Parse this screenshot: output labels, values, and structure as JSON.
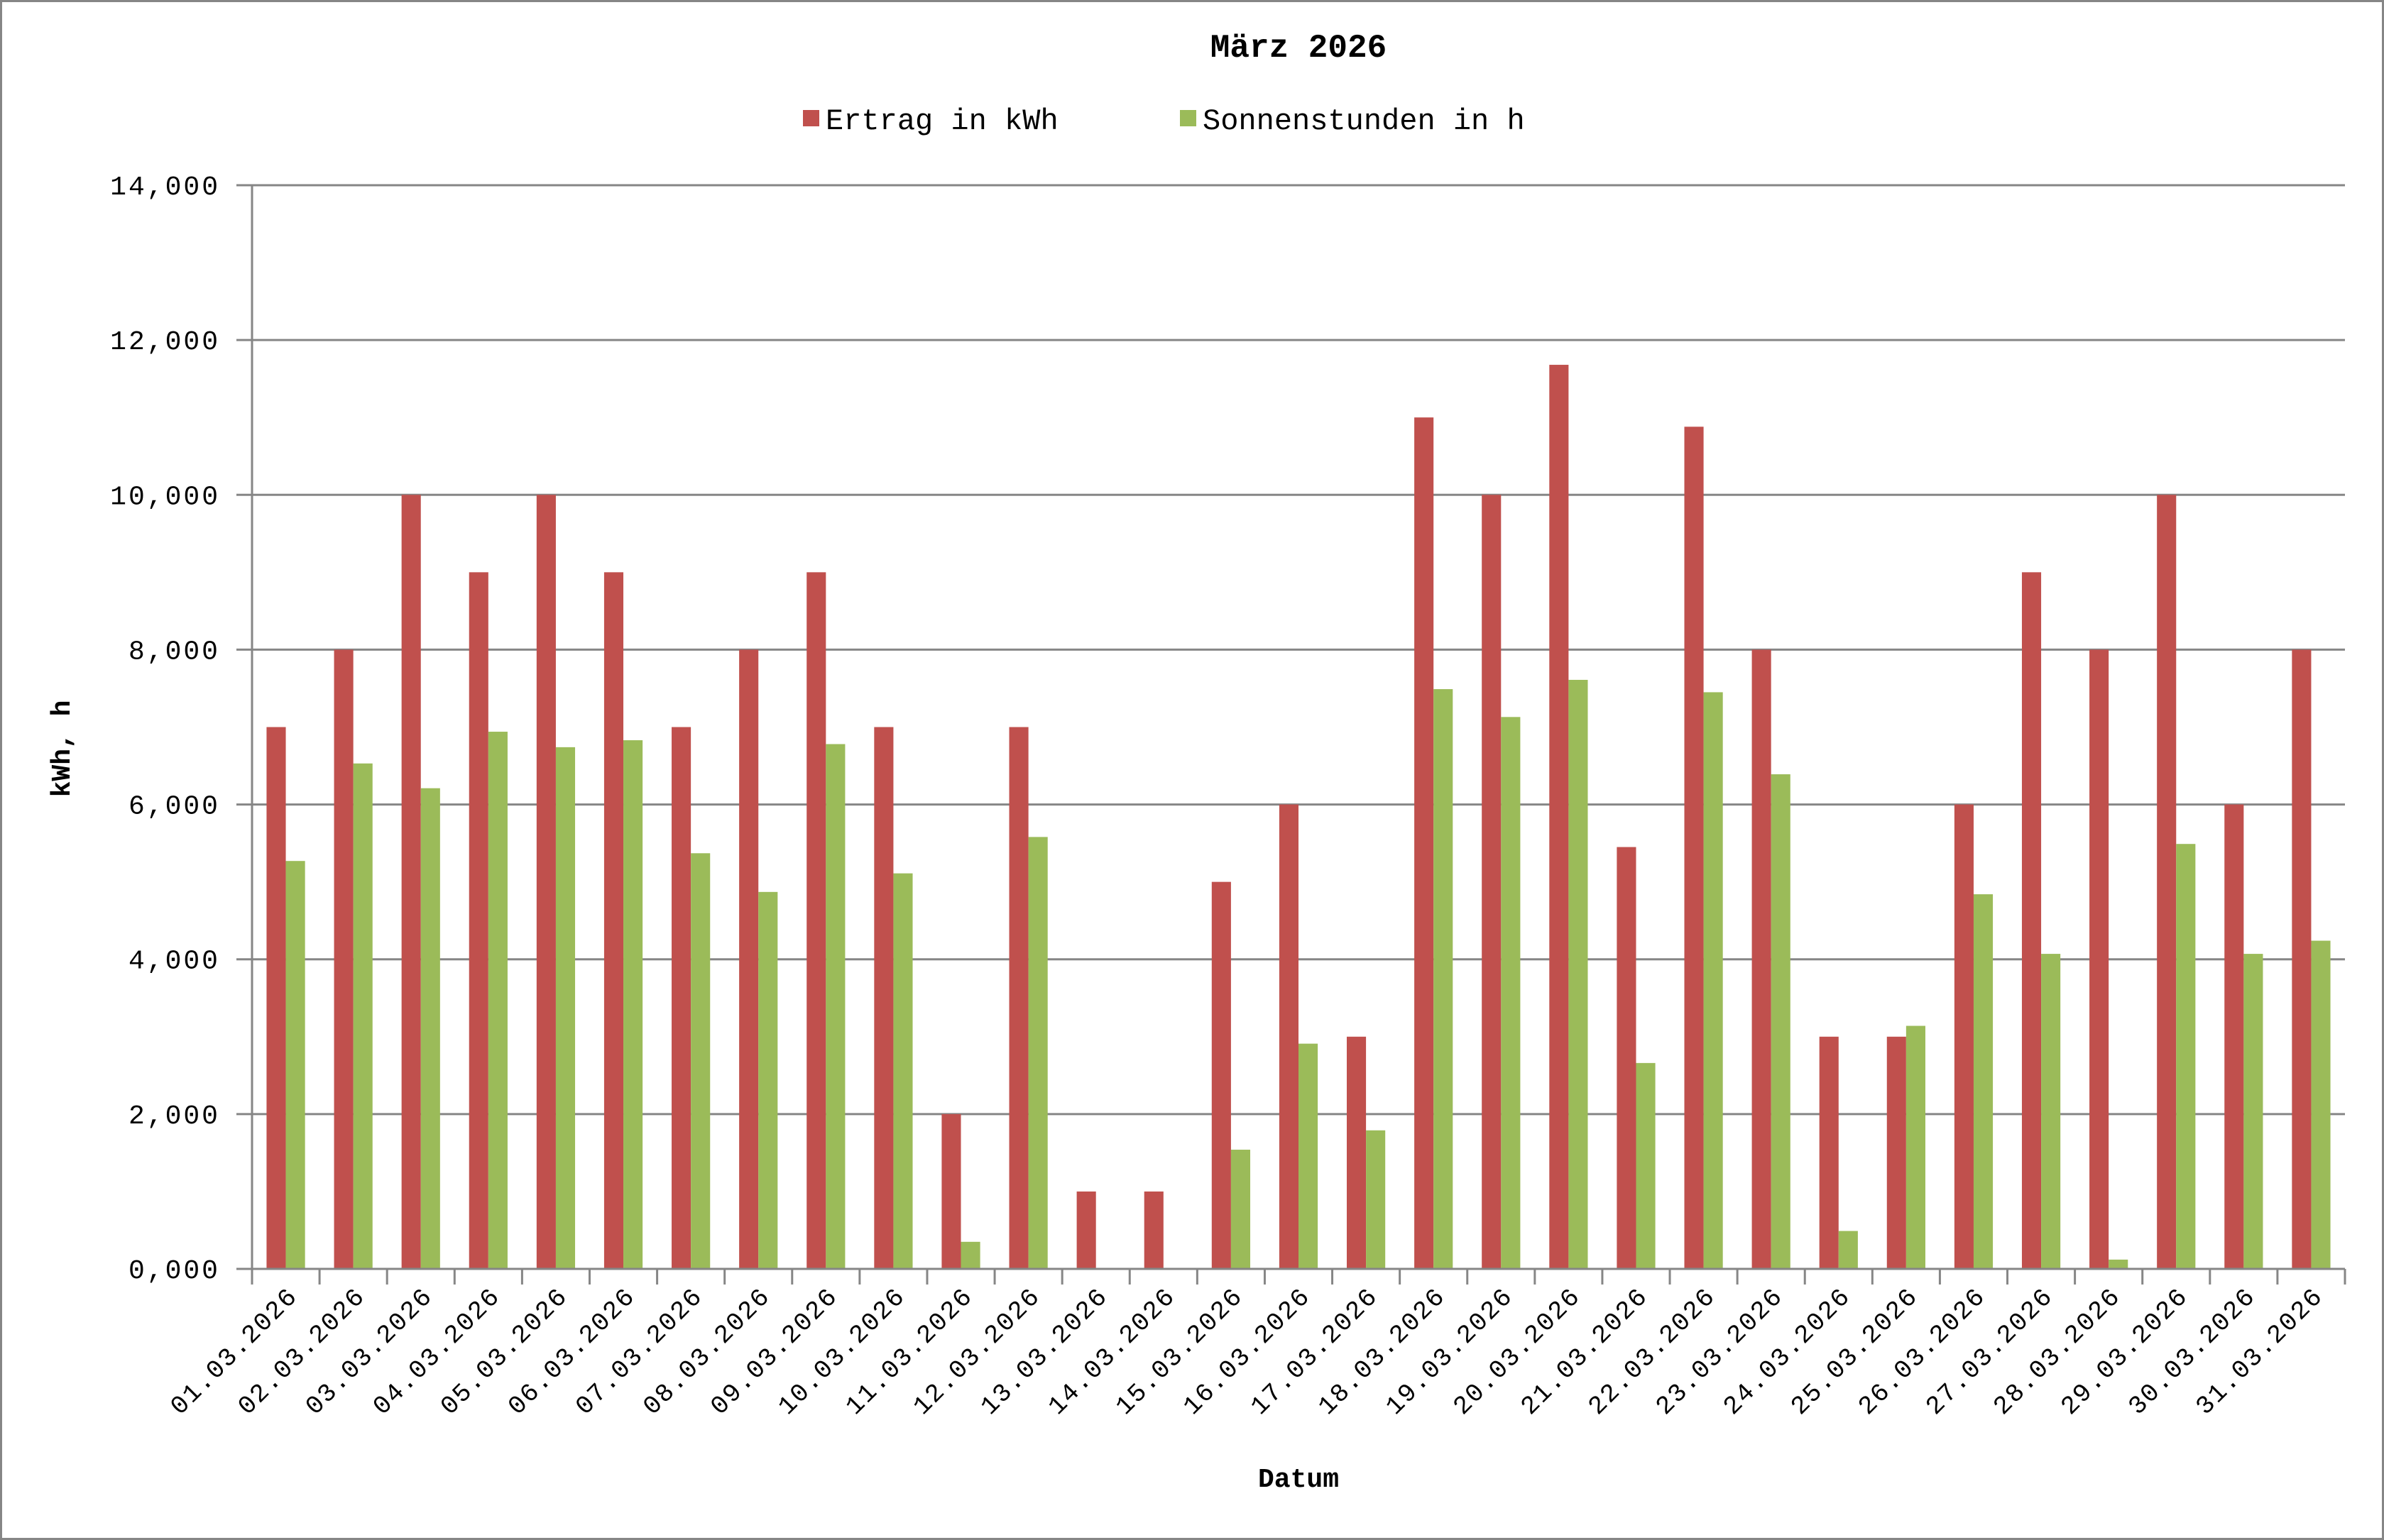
{
  "chart_data": {
    "type": "bar",
    "title": "März 2026",
    "xlabel": "Datum",
    "ylabel": "kWh, h",
    "ylim": [
      0,
      14
    ],
    "yticks": [
      "0,000",
      "2,000",
      "4,000",
      "6,000",
      "8,000",
      "10,000",
      "12,000",
      "14,000"
    ],
    "grid": true,
    "legend_position": "top",
    "categories": [
      "01.03.2026",
      "02.03.2026",
      "03.03.2026",
      "04.03.2026",
      "05.03.2026",
      "06.03.2026",
      "07.03.2026",
      "08.03.2026",
      "09.03.2026",
      "10.03.2026",
      "11.03.2026",
      "12.03.2026",
      "13.03.2026",
      "14.03.2026",
      "15.03.2026",
      "16.03.2026",
      "17.03.2026",
      "18.03.2026",
      "19.03.2026",
      "20.03.2026",
      "21.03.2026",
      "22.03.2026",
      "23.03.2026",
      "24.03.2026",
      "25.03.2026",
      "26.03.2026",
      "27.03.2026",
      "28.03.2026",
      "29.03.2026",
      "30.03.2026",
      "31.03.2026"
    ],
    "series": [
      {
        "name": "Ertrag in kWh",
        "color": "#C0504D",
        "values": [
          7,
          8,
          10,
          9,
          10,
          9,
          7,
          8,
          9,
          7,
          2,
          7,
          1,
          1,
          5,
          6,
          3,
          11,
          10,
          11.68,
          5.45,
          10.88,
          8,
          3,
          3,
          6,
          9,
          8,
          10,
          6,
          8
        ]
      },
      {
        "name": "Sonnenstunden in h",
        "color": "#9BBB59",
        "values": [
          5.27,
          6.53,
          6.21,
          6.94,
          6.74,
          6.83,
          5.37,
          4.87,
          6.78,
          5.11,
          0.35,
          5.58,
          0,
          0,
          1.54,
          2.91,
          1.79,
          7.49,
          7.13,
          7.61,
          2.66,
          7.45,
          6.39,
          0.49,
          3.14,
          4.84,
          4.07,
          0.12,
          5.49,
          4.07,
          4.24
        ]
      }
    ]
  },
  "colors": {
    "grid": "#868686",
    "frame": "#868686"
  }
}
